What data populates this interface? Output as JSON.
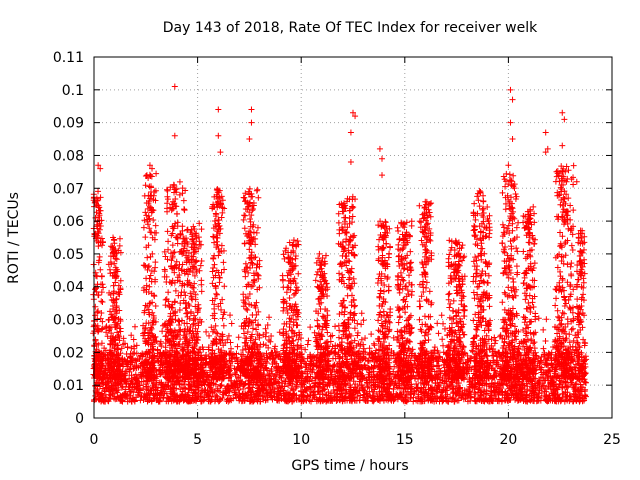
{
  "chart_data": {
    "type": "scatter",
    "title": "Day 143 of 2018, Rate Of TEC Index for receiver welk",
    "xlabel": "GPS time / hours",
    "ylabel": "ROTI / TECUs",
    "xlim": [
      0,
      25
    ],
    "ylim": [
      0,
      0.11
    ],
    "xticks": [
      0,
      5,
      10,
      15,
      20,
      25
    ],
    "xtick_labels": [
      "0",
      "5",
      "10",
      "15",
      "20",
      "25"
    ],
    "yticks": [
      0,
      0.01,
      0.02,
      0.03,
      0.04,
      0.05,
      0.06,
      0.07,
      0.08,
      0.09,
      0.1,
      0.11
    ],
    "ytick_labels": [
      "0",
      "0.01",
      "0.02",
      "0.03",
      "0.04",
      "0.05",
      "0.06",
      "0.07",
      "0.08",
      "0.09",
      "0.1",
      "0.11"
    ],
    "grid": true,
    "marker": "+",
    "series": [
      {
        "name": "ROTI",
        "color": "#ff0000",
        "x_range": [
          0,
          23.75
        ],
        "baseline_range": [
          0.005,
          0.02
        ],
        "notable_points": [
          {
            "x": 3.9,
            "y": 0.101
          },
          {
            "x": 3.9,
            "y": 0.086
          },
          {
            "x": 6.0,
            "y": 0.094
          },
          {
            "x": 6.0,
            "y": 0.086
          },
          {
            "x": 6.1,
            "y": 0.081
          },
          {
            "x": 7.6,
            "y": 0.094
          },
          {
            "x": 7.6,
            "y": 0.09
          },
          {
            "x": 7.5,
            "y": 0.085
          },
          {
            "x": 12.5,
            "y": 0.093
          },
          {
            "x": 12.6,
            "y": 0.092
          },
          {
            "x": 12.4,
            "y": 0.087
          },
          {
            "x": 12.4,
            "y": 0.078
          },
          {
            "x": 13.8,
            "y": 0.082
          },
          {
            "x": 13.9,
            "y": 0.079
          },
          {
            "x": 13.9,
            "y": 0.074
          },
          {
            "x": 20.1,
            "y": 0.1
          },
          {
            "x": 20.2,
            "y": 0.097
          },
          {
            "x": 20.1,
            "y": 0.09
          },
          {
            "x": 20.2,
            "y": 0.085
          },
          {
            "x": 20.0,
            "y": 0.077
          },
          {
            "x": 21.8,
            "y": 0.087
          },
          {
            "x": 21.9,
            "y": 0.082
          },
          {
            "x": 21.8,
            "y": 0.081
          },
          {
            "x": 22.6,
            "y": 0.093
          },
          {
            "x": 22.7,
            "y": 0.091
          },
          {
            "x": 22.6,
            "y": 0.083
          },
          {
            "x": 23.3,
            "y": 0.072
          },
          {
            "x": 0.2,
            "y": 0.077
          },
          {
            "x": 0.3,
            "y": 0.076
          },
          {
            "x": 2.7,
            "y": 0.077
          },
          {
            "x": 2.8,
            "y": 0.076
          }
        ],
        "bursts": [
          {
            "center": 0.2,
            "width": 0.5,
            "peak": 0.07
          },
          {
            "center": 1.0,
            "width": 0.6,
            "peak": 0.055
          },
          {
            "center": 2.7,
            "width": 0.6,
            "peak": 0.075
          },
          {
            "center": 3.9,
            "width": 1.0,
            "peak": 0.072
          },
          {
            "center": 4.8,
            "width": 0.8,
            "peak": 0.06
          },
          {
            "center": 6.0,
            "width": 0.6,
            "peak": 0.07
          },
          {
            "center": 7.6,
            "width": 0.8,
            "peak": 0.07
          },
          {
            "center": 9.5,
            "width": 0.8,
            "peak": 0.055
          },
          {
            "center": 11.0,
            "width": 0.6,
            "peak": 0.05
          },
          {
            "center": 12.2,
            "width": 0.8,
            "peak": 0.068
          },
          {
            "center": 14.0,
            "width": 0.6,
            "peak": 0.06
          },
          {
            "center": 15.0,
            "width": 0.7,
            "peak": 0.06
          },
          {
            "center": 16.0,
            "width": 0.6,
            "peak": 0.066
          },
          {
            "center": 17.5,
            "width": 0.8,
            "peak": 0.055
          },
          {
            "center": 18.7,
            "width": 0.8,
            "peak": 0.07
          },
          {
            "center": 20.1,
            "width": 0.8,
            "peak": 0.075
          },
          {
            "center": 21.0,
            "width": 0.6,
            "peak": 0.065
          },
          {
            "center": 22.7,
            "width": 0.9,
            "peak": 0.078
          },
          {
            "center": 23.5,
            "width": 0.4,
            "peak": 0.058
          }
        ]
      }
    ]
  }
}
